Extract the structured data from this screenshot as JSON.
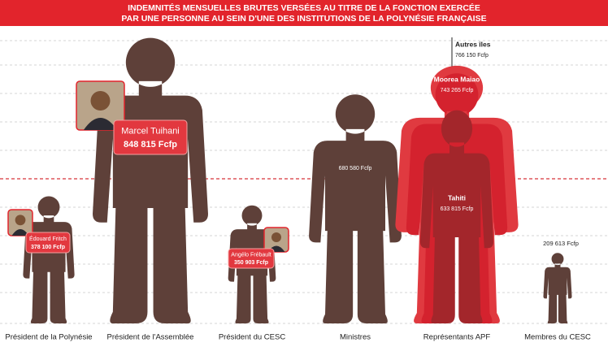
{
  "chart_data": {
    "type": "pictograph",
    "title": [
      "INDEMNITÉS MENSUELLES BRUTES VERSÉES AU TITRE DE LA FONCTION EXERCÉE",
      "PAR UNE PERSONNE AU SEIN D'UNE DES INSTITUTIONS DE LA POLYNÉSIE FRANÇAISE"
    ],
    "categories": [
      "Président de la Polynésie",
      "Président de l'Assemblée",
      "Président du CESC",
      "Ministres",
      "Représentants APF",
      "Membres du CESC"
    ],
    "values": [
      378100,
      848815,
      350903,
      680580,
      null,
      209613
    ],
    "value_labels": [
      "378 100 Fcfp",
      "848 815 Fcfp",
      "350 903 Fcfp",
      "680 580 Fcfp",
      null,
      "209 613 Fcfp"
    ],
    "person_names": [
      "Édouard Fritch",
      "Marcel Tuihani",
      "Angélo Frébault",
      null,
      null,
      null
    ],
    "apf_breakdown": {
      "names": [
        "Autres îles",
        "Moorea Maiao",
        "Tahiti"
      ],
      "values": [
        766150,
        743265,
        633815
      ],
      "value_labels": [
        "766 150 Fcfp",
        "743 265 Fcfp",
        "633 815 Fcfp"
      ],
      "colors": [
        "#e03a40",
        "#d4222e",
        "#a3262b"
      ]
    },
    "color": "#5e4039",
    "ylim": [
      0,
      880000
    ]
  }
}
